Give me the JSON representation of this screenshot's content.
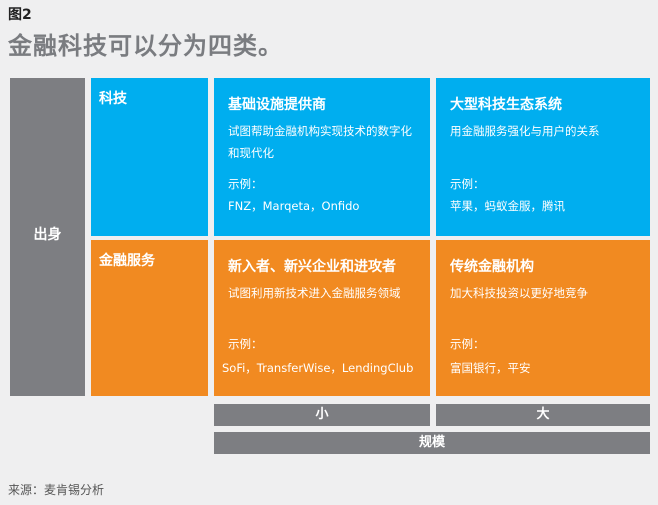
{
  "figure_label": "图2",
  "title": "金融科技可以分为四类。",
  "origin": {
    "label": "出身"
  },
  "rows": {
    "tech": "科技",
    "financial": "金融服务"
  },
  "cells": {
    "infra": {
      "title": "基础设施提供商",
      "desc": "试图帮助金融机构实现技术的数字化和现代化",
      "example_label": "示例：",
      "examples": "FNZ，Marqeta，Onfido"
    },
    "eco": {
      "title": "大型科技生态系统",
      "desc": "用金融服务强化与用户的关系",
      "example_label": "示例：",
      "examples": "苹果，蚂蚁金服，腾讯"
    },
    "new": {
      "title": "新入者、新兴企业和进攻者",
      "desc": "试图利用新技术进入金融服务领域",
      "example_label": "示例：",
      "examples": "SoFi，TransferWise，LendingClub"
    },
    "trad": {
      "title": "传统金融机构",
      "desc": "加大科技投资以更好地竞争",
      "example_label": "示例：",
      "examples": "富国银行，平安"
    }
  },
  "scale": {
    "small": "小",
    "large": "大",
    "label": "规模"
  },
  "source": "来源：麦肯锡分析",
  "colors": {
    "gray": "#7d7e82",
    "blue": "#00aeef",
    "orange": "#f18a21"
  }
}
